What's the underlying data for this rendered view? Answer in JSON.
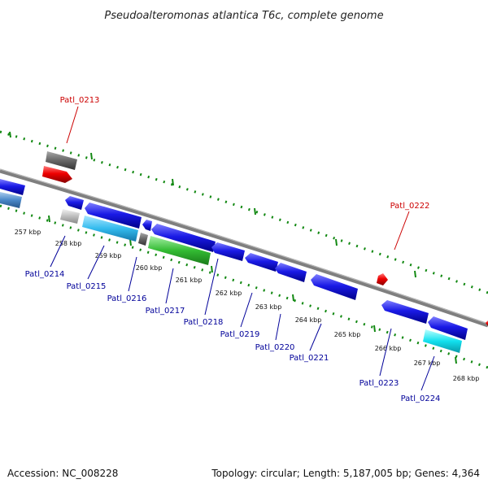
{
  "title": "Pseudoalteromonas atlantica T6c, complete genome",
  "accession": "Accession: NC_008228",
  "summary": "Topology: circular; Length: 5,187,005 bp; Genes: 4,364",
  "colors": {
    "backbone": "#7f7f7f",
    "tick": "#118811",
    "label_plus": "#cc0000",
    "label_minus": "#000099",
    "cds_blue": "#1212dd",
    "cds_red": "#e00000",
    "gray": "#666666",
    "light_gray": "#bcbcbc",
    "cyan_light": "#33bbee",
    "cyan": "#11e0ee",
    "green": "#33bb33",
    "steel": "#4a88c8"
  },
  "scale": [
    {
      "label": "257 kbp"
    },
    {
      "label": "258 kbp"
    },
    {
      "label": "259 kbp"
    },
    {
      "label": "260 kbp"
    },
    {
      "label": "261 kbp"
    },
    {
      "label": "262 kbp"
    },
    {
      "label": "263 kbp"
    },
    {
      "label": "264 kbp"
    },
    {
      "label": "265 kbp"
    },
    {
      "label": "266 kbp"
    },
    {
      "label": "267 kbp"
    },
    {
      "label": "268 kbp"
    }
  ],
  "genes_plus": [
    {
      "name": "Patl_0213"
    },
    {
      "name": "Patl_0222"
    }
  ],
  "genes_minus": [
    {
      "name": "Patl_0214"
    },
    {
      "name": "Patl_0215"
    },
    {
      "name": "Patl_0216"
    },
    {
      "name": "Patl_0217"
    },
    {
      "name": "Patl_0218"
    },
    {
      "name": "Patl_0219"
    },
    {
      "name": "Patl_0220"
    },
    {
      "name": "Patl_0221"
    },
    {
      "name": "Patl_0223"
    },
    {
      "name": "Patl_0224"
    }
  ]
}
